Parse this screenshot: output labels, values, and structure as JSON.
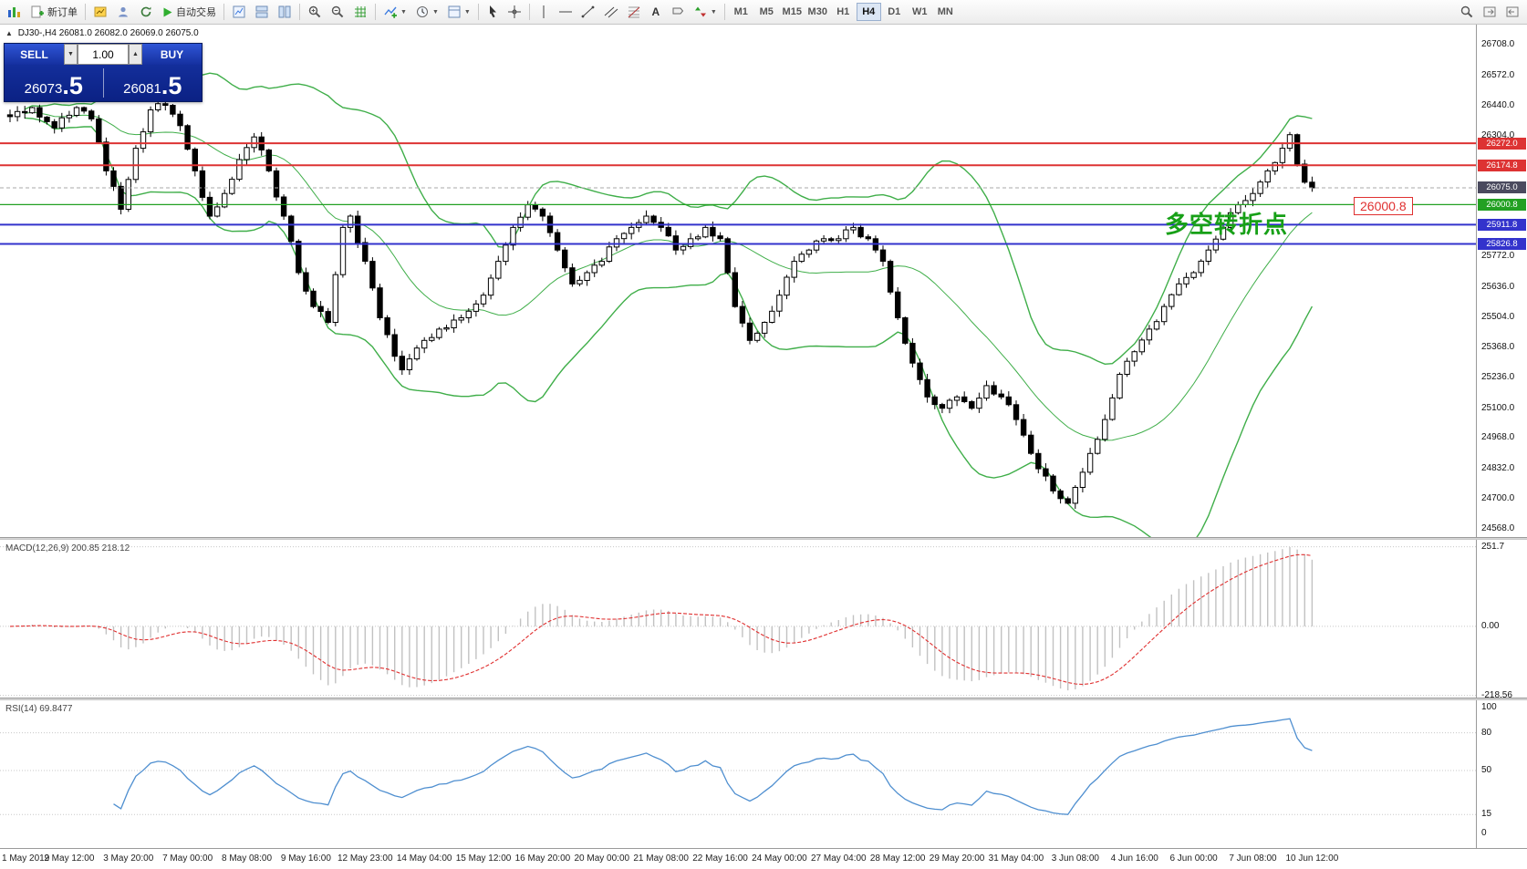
{
  "toolbar": {
    "new_order_label": "新订单",
    "autotrading_label": "自动交易",
    "timeframes": [
      "M1",
      "M5",
      "M15",
      "M30",
      "H1",
      "H4",
      "D1",
      "W1",
      "MN"
    ],
    "active_timeframe": "H4"
  },
  "chart_header": {
    "symbol_period": "DJ30-,H4",
    "ohlc": "26081.0 26082.0 26069.0 26075.0"
  },
  "trade_panel": {
    "sell_label": "SELL",
    "buy_label": "BUY",
    "volume": "1.00",
    "sell_price_main": "26073",
    "sell_price_frac": ".5",
    "buy_price_main": "26081",
    "buy_price_frac": ".5"
  },
  "annotation": {
    "text": "多空转折点"
  },
  "price_tag": {
    "text": "26000.8"
  },
  "colors": {
    "bollinger": "#3fae49",
    "macd_hist": "#c2c2c2",
    "macd_signal": "#e03030",
    "rsi": "#4f8fd0",
    "level_red": "#dd3333",
    "level_blue": "#3333cc",
    "level_green": "#22a022",
    "bid_badge": "#4a4a5e"
  },
  "price_axis": {
    "labels": [
      "26708.0",
      "26572.0",
      "26440.0",
      "26304.0",
      "25772.0",
      "25636.0",
      "25504.0",
      "25368.0",
      "25236.0",
      "25100.0",
      "24968.0",
      "24832.0",
      "24700.0",
      "24568.0"
    ],
    "badges": [
      {
        "text": "26272.0",
        "value": 26272.0,
        "color": "#dd3333"
      },
      {
        "text": "26174.8",
        "value": 26174.8,
        "color": "#dd3333"
      },
      {
        "text": "26075.0",
        "value": 26075.0,
        "color": "#4a4a5e"
      },
      {
        "text": "26000.8",
        "value": 26000.8,
        "color": "#22a022"
      },
      {
        "text": "25911.8",
        "value": 25911.8,
        "color": "#3333cc"
      },
      {
        "text": "25826.8",
        "value": 25826.8,
        "color": "#3333cc"
      }
    ]
  },
  "indicators": {
    "macd": {
      "label": "MACD(12,26,9) 200.85 218.12",
      "axis": [
        "251.7",
        "0.00",
        "-218.56"
      ]
    },
    "rsi": {
      "label": "RSI(14) 69.8477",
      "axis": [
        "100",
        "80",
        "50",
        "15",
        "0"
      ],
      "levels": [
        80,
        50,
        15
      ]
    }
  },
  "time_axis": {
    "candles_per_label": 8,
    "labels": [
      "1 May 2019",
      "2 May 12:00",
      "3 May 20:00",
      "7 May 00:00",
      "8 May 08:00",
      "9 May 16:00",
      "12 May 23:00",
      "14 May 04:00",
      "15 May 12:00",
      "16 May 20:00",
      "20 May 00:00",
      "21 May 08:00",
      "22 May 16:00",
      "24 May 00:00",
      "27 May 04:00",
      "28 May 12:00",
      "29 May 20:00",
      "31 May 04:00",
      "3 Jun 08:00",
      "4 Jun 16:00",
      "6 Jun 00:00",
      "7 Jun 08:00",
      "10 Jun 12:00"
    ]
  },
  "chart_data": {
    "type": "candlestick",
    "symbol": "DJ30-",
    "timeframe": "H4",
    "price_min": 24530,
    "price_max": 26797,
    "candle_count": 177,
    "bid_price": 26075.0,
    "close_anchors": [
      [
        0,
        26390
      ],
      [
        3,
        26430
      ],
      [
        6,
        26340
      ],
      [
        9,
        26430
      ],
      [
        11,
        26380
      ],
      [
        13,
        26150
      ],
      [
        15,
        25980
      ],
      [
        17,
        26250
      ],
      [
        19,
        26420
      ],
      [
        21,
        26440
      ],
      [
        23,
        26350
      ],
      [
        25,
        26150
      ],
      [
        27,
        25950
      ],
      [
        29,
        26050
      ],
      [
        31,
        26200
      ],
      [
        33,
        26300
      ],
      [
        35,
        26150
      ],
      [
        37,
        25950
      ],
      [
        39,
        25700
      ],
      [
        41,
        25550
      ],
      [
        43,
        25480
      ],
      [
        45,
        25900
      ],
      [
        46,
        25950
      ],
      [
        48,
        25750
      ],
      [
        50,
        25500
      ],
      [
        52,
        25330
      ],
      [
        53,
        25270
      ],
      [
        56,
        25400
      ],
      [
        58,
        25450
      ],
      [
        61,
        25500
      ],
      [
        64,
        25600
      ],
      [
        66,
        25750
      ],
      [
        68,
        25900
      ],
      [
        70,
        26000
      ],
      [
        72,
        25950
      ],
      [
        74,
        25800
      ],
      [
        76,
        25650
      ],
      [
        78,
        25700
      ],
      [
        80,
        25750
      ],
      [
        82,
        25850
      ],
      [
        84,
        25900
      ],
      [
        86,
        25950
      ],
      [
        88,
        25900
      ],
      [
        90,
        25800
      ],
      [
        92,
        25850
      ],
      [
        94,
        25900
      ],
      [
        96,
        25850
      ],
      [
        97,
        25700
      ],
      [
        98,
        25550
      ],
      [
        100,
        25400
      ],
      [
        102,
        25480
      ],
      [
        104,
        25600
      ],
      [
        106,
        25750
      ],
      [
        108,
        25800
      ],
      [
        110,
        25850
      ],
      [
        112,
        25850
      ],
      [
        114,
        25900
      ],
      [
        116,
        25850
      ],
      [
        118,
        25750
      ],
      [
        120,
        25500
      ],
      [
        122,
        25300
      ],
      [
        124,
        25150
      ],
      [
        126,
        25100
      ],
      [
        128,
        25150
      ],
      [
        130,
        25100
      ],
      [
        132,
        25200
      ],
      [
        134,
        25150
      ],
      [
        136,
        25050
      ],
      [
        138,
        24900
      ],
      [
        140,
        24800
      ],
      [
        142,
        24700
      ],
      [
        143,
        24680
      ],
      [
        144,
        24750
      ],
      [
        146,
        24900
      ],
      [
        148,
        25050
      ],
      [
        150,
        25250
      ],
      [
        152,
        25350
      ],
      [
        154,
        25450
      ],
      [
        156,
        25550
      ],
      [
        158,
        25650
      ],
      [
        160,
        25700
      ],
      [
        162,
        25800
      ],
      [
        164,
        25900
      ],
      [
        166,
        26000
      ],
      [
        168,
        26050
      ],
      [
        170,
        26150
      ],
      [
        172,
        26250
      ],
      [
        173,
        26310
      ],
      [
        174,
        26180
      ],
      [
        175,
        26100
      ],
      [
        176,
        26075
      ]
    ],
    "hlines": [
      {
        "value": 26272.0,
        "color": "#dd3333",
        "width": 2
      },
      {
        "value": 26174.8,
        "color": "#dd3333",
        "width": 2
      },
      {
        "value": 26000.8,
        "color": "#22a022",
        "width": 1.3
      },
      {
        "value": 25911.8,
        "color": "#3333cc",
        "width": 2
      },
      {
        "value": 25826.8,
        "color": "#3333cc",
        "width": 2
      }
    ],
    "bollinger": {
      "period": 20,
      "deviation": 2
    },
    "macd": {
      "fast": 12,
      "slow": 26,
      "signal": 9,
      "current_macd": 200.85,
      "current_signal": 218.12,
      "axis_levels": [
        251.7,
        0,
        -218.56
      ]
    },
    "rsi": {
      "period": 14,
      "current": 69.8477
    }
  }
}
